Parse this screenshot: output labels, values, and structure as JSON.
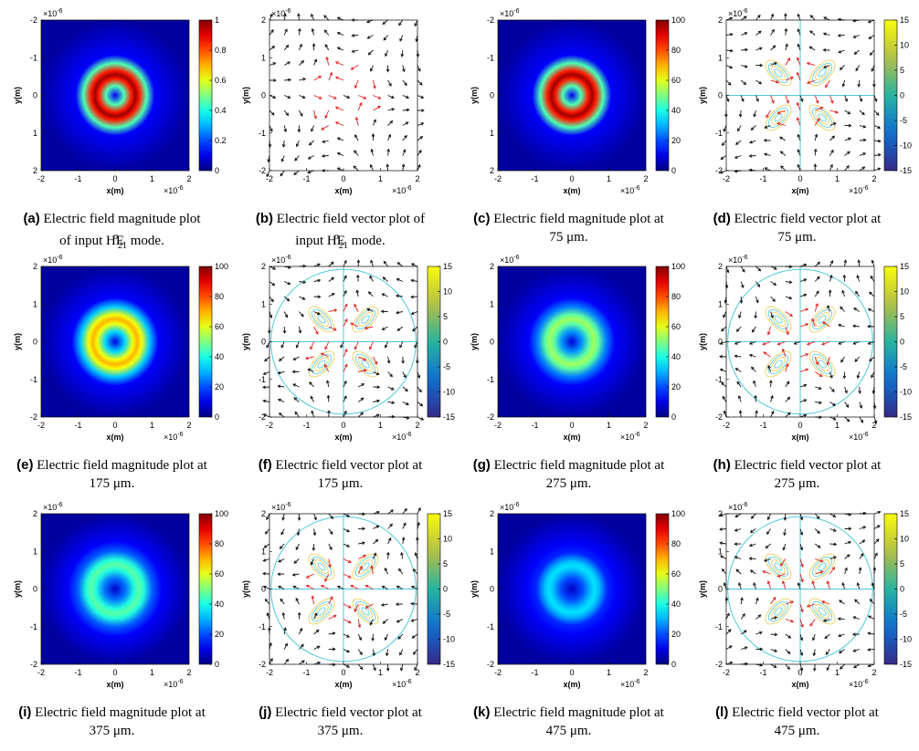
{
  "axes": {
    "xlabel": "x(m)",
    "ylabel": "y(m)",
    "exponent": "×10",
    "exponent_power": "-6",
    "x_ticks": [
      "-2",
      "-1",
      "0",
      "1",
      "2"
    ],
    "y_ticks": [
      "-2",
      "-1",
      "0",
      "1",
      "2"
    ]
  },
  "colorbar_ticks": {
    "unit": [
      "1",
      "0.8",
      "0.6",
      "0.4",
      "0.2",
      "0"
    ],
    "percent": [
      "100",
      "80",
      "60",
      "40",
      "20",
      "0"
    ],
    "vector": [
      "15",
      "10",
      "5",
      "0",
      "-5",
      "-10",
      "-15"
    ]
  },
  "chart_data": [
    {
      "id": "a",
      "type": "heatmap",
      "kind": "magnitude",
      "label": "(a)",
      "caption": "Electric field magnitude plot of input HE₂₁ᵒ mode.",
      "cap_line1": "Electric field magnitude plot",
      "cap_line2_pre": "of input HE",
      "cap_sub": "21",
      "cap_sup": "o",
      "cap_line2_post": " mode.",
      "clim": [
        0,
        1
      ],
      "ticks": "unit",
      "ring_radius": 0.55,
      "intensity": 1.0,
      "y_ticks": [
        "-2",
        "-1",
        "0",
        "1",
        "2"
      ],
      "xlabel": "x(m)",
      "ylabel": "y(m)"
    },
    {
      "id": "b",
      "type": "quiver",
      "kind": "vector",
      "label": "(b)",
      "caption": "Electric field vector plot of input HE₂₁ᵒ mode.",
      "cap_line1": "Electric field vector plot of",
      "cap_line2_pre": "input HE",
      "cap_sub": "21",
      "cap_sup": "o",
      "cap_line2_post": " mode.",
      "contours": false,
      "y_ticks": [
        "2",
        "1",
        "0",
        "-1",
        "-2"
      ]
    },
    {
      "id": "c",
      "type": "heatmap",
      "kind": "magnitude",
      "label": "(c)",
      "caption": "Electric field magnitude plot at 75 μm.",
      "cap_line1": "Electric field magnitude plot at",
      "cap_line2": "75 μm.",
      "clim": [
        0,
        100
      ],
      "ticks": "percent",
      "ring_radius": 0.55,
      "intensity": 1.0,
      "y_ticks": [
        "-2",
        "-1",
        "0",
        "1",
        "2"
      ]
    },
    {
      "id": "d",
      "type": "quiver",
      "kind": "vector",
      "label": "(d)",
      "caption": "Electric field vector plot at 75 μm.",
      "cap_line1": "Electric field vector plot at",
      "cap_line2": "75 μm.",
      "contours": true,
      "clim": [
        -15,
        15
      ],
      "y_ticks": [
        "2",
        "1",
        "0",
        "-1",
        "-2"
      ]
    },
    {
      "id": "e",
      "type": "heatmap",
      "kind": "magnitude",
      "label": "(e)",
      "caption": "Electric field magnitude plot at 175 μm.",
      "cap_line1": "Electric field magnitude plot at",
      "cap_line2": "175 μm.",
      "clim": [
        0,
        100
      ],
      "ticks": "percent",
      "ring_radius": 0.6,
      "intensity": 0.72,
      "y_ticks": [
        "2",
        "1",
        "0",
        "-1",
        "-2"
      ]
    },
    {
      "id": "f",
      "type": "quiver",
      "kind": "vector",
      "label": "(f)",
      "caption": "Electric field vector plot at 175 μm.",
      "cap_line1": "Electric field vector plot at",
      "cap_line2": "175 μm.",
      "contours": true,
      "clim": [
        -15,
        15
      ],
      "y_ticks": [
        "2",
        "1",
        "0",
        "-1",
        "-2"
      ]
    },
    {
      "id": "g",
      "type": "heatmap",
      "kind": "magnitude",
      "label": "(g)",
      "caption": "Electric field magnitude plot at 275 μm.",
      "cap_line1": "Electric field magnitude plot at",
      "cap_line2": "275 μm.",
      "clim": [
        0,
        100
      ],
      "ticks": "percent",
      "ring_radius": 0.6,
      "intensity": 0.55,
      "y_ticks": [
        "2",
        "1",
        "0",
        "-1",
        "-2"
      ]
    },
    {
      "id": "h",
      "type": "quiver",
      "kind": "vector",
      "label": "(h)",
      "caption": "Electric field vector plot at 275 μm.",
      "cap_line1": "Electric field vector plot at",
      "cap_line2": "275 μm.",
      "contours": true,
      "clim": [
        -15,
        15
      ],
      "y_ticks": [
        "2",
        "1",
        "0",
        "-1",
        "-2"
      ]
    },
    {
      "id": "i",
      "type": "heatmap",
      "kind": "magnitude",
      "label": "(i)",
      "caption": "Electric field magnitude plot at 375 μm.",
      "cap_line1": "Electric field magnitude plot at",
      "cap_line2": "375 μm.",
      "clim": [
        0,
        100
      ],
      "ticks": "percent",
      "ring_radius": 0.65,
      "intensity": 0.48,
      "y_ticks": [
        "2",
        "1",
        "0",
        "-1",
        "-2"
      ]
    },
    {
      "id": "j",
      "type": "quiver",
      "kind": "vector",
      "label": "(j)",
      "caption": "Electric field vector plot at 375 μm.",
      "cap_line1": "Electric field vector plot at",
      "cap_line2": "375 μm.",
      "contours": true,
      "clim": [
        -15,
        15
      ],
      "y_ticks": [
        "2",
        "1",
        "0",
        "-1",
        "-2"
      ]
    },
    {
      "id": "k",
      "type": "heatmap",
      "kind": "magnitude",
      "label": "(k)",
      "caption": "Electric field magnitude plot at 475 μm.",
      "cap_line1": "Electric field magnitude plot at",
      "cap_line2": "475 μm.",
      "clim": [
        0,
        100
      ],
      "ticks": "percent",
      "ring_radius": 0.62,
      "intensity": 0.36,
      "y_ticks": [
        "2",
        "1",
        "0",
        "-1",
        "-2"
      ]
    },
    {
      "id": "l",
      "type": "quiver",
      "kind": "vector",
      "label": "(l)",
      "caption": "Electric field vector plot at 475 μm.",
      "cap_line1": "Electric field vector plot at",
      "cap_line2": "475 μm.",
      "contours": true,
      "clim": [
        -15,
        15
      ],
      "y_ticks": [
        "2",
        "1",
        "0",
        "-1",
        "-2"
      ]
    }
  ]
}
